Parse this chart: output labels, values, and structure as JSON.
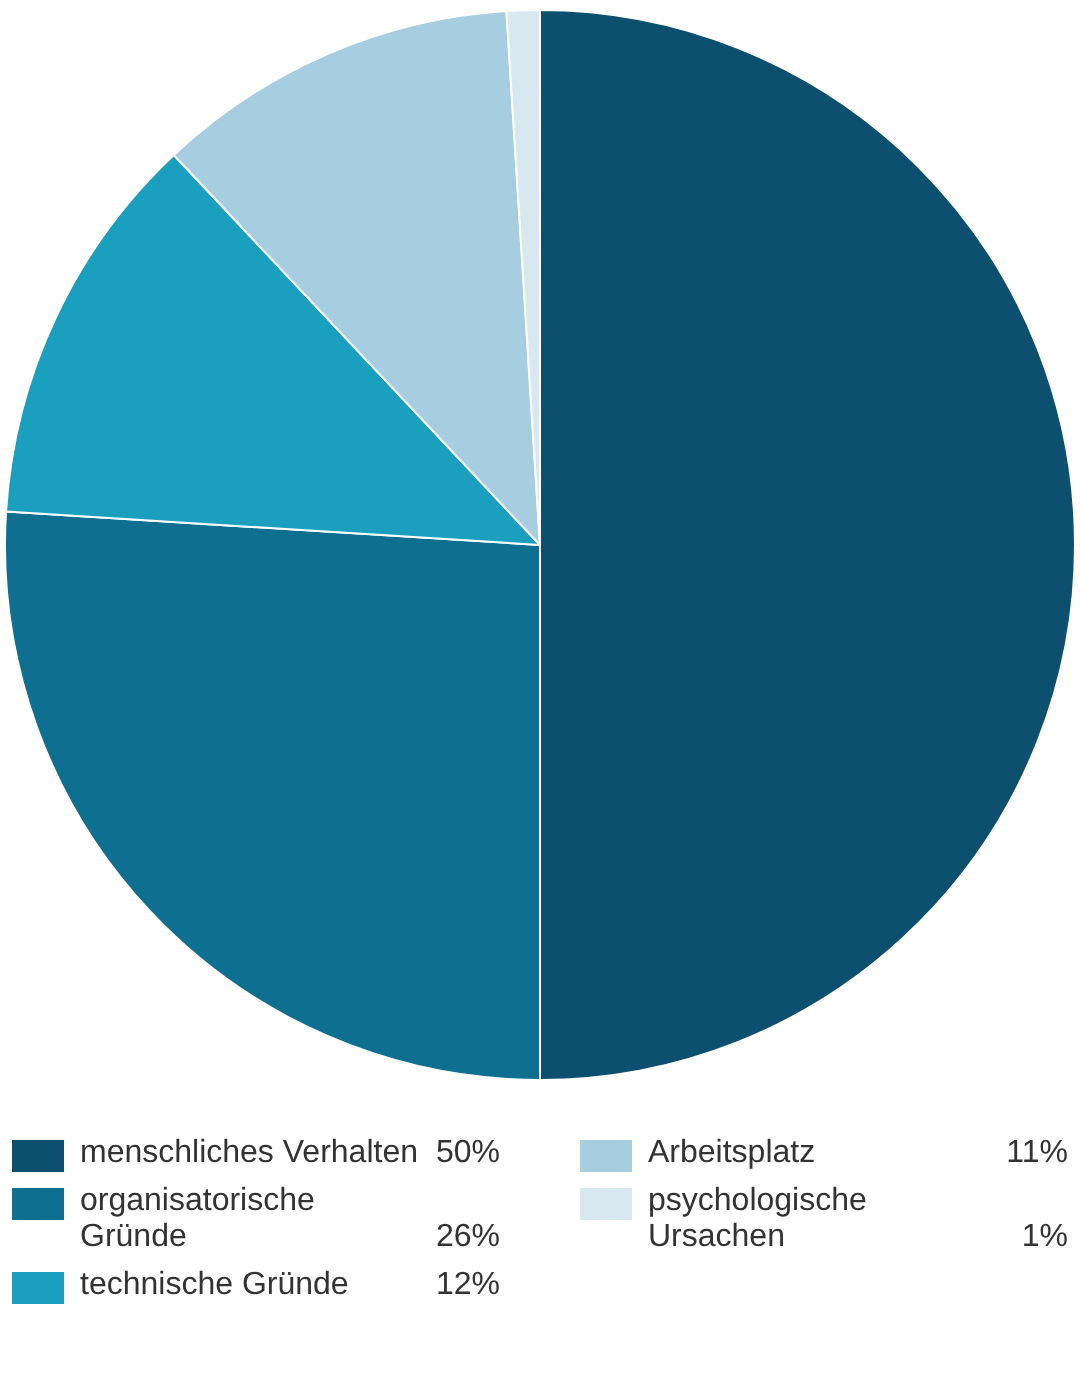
{
  "chart_data": {
    "type": "pie",
    "categories": [
      "menschliches Verhalten",
      "organisatorische Gründe",
      "technische Gründe",
      "Arbeitsplatz",
      "psychologische Ursachen"
    ],
    "values": [
      50,
      26,
      12,
      11,
      1
    ],
    "value_labels": [
      "50%",
      "26%",
      "12%",
      "11%",
      "1%"
    ],
    "colors": [
      "#0d4f6e",
      "#0f6f91",
      "#1a9fbf",
      "#a6cde0",
      "#d8e8f1"
    ],
    "legend": "bottom"
  }
}
